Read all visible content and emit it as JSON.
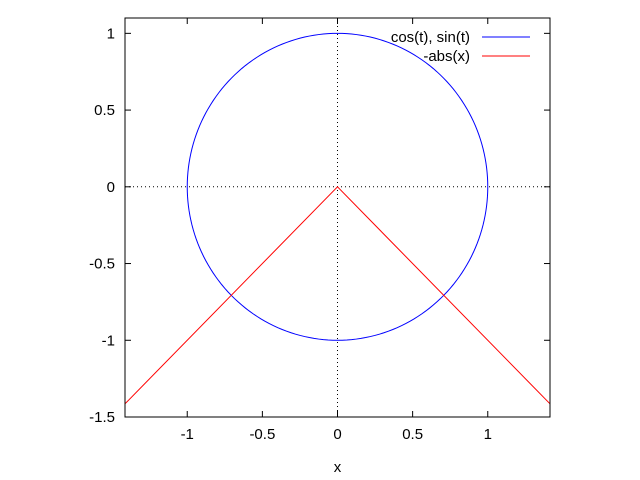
{
  "chart_data": {
    "type": "line",
    "title": "",
    "xlabel": "x",
    "ylabel": "",
    "xlim": [
      -1.4142,
      1.4142
    ],
    "ylim": [
      -1.5,
      1.1
    ],
    "x_ticks": [
      -1,
      -0.5,
      0,
      0.5,
      1
    ],
    "x_tick_labels": [
      "-1",
      "-0.5",
      "0",
      "0.5",
      "1"
    ],
    "y_ticks": [
      -1.5,
      -1,
      -0.5,
      0,
      0.5,
      1
    ],
    "y_tick_labels": [
      "-1.5",
      "-1",
      "-0.5",
      "0",
      "0.5",
      "1"
    ],
    "zero_axes": "dotted",
    "grid": false,
    "legend_position": "top-right",
    "series": [
      {
        "name": "cos(t), sin(t)",
        "color": "#0000ff",
        "kind": "parametric",
        "x": "cos(t)",
        "y": "sin(t)",
        "t_range": [
          0,
          6.2832
        ],
        "sample_points": [
          [
            1,
            0
          ],
          [
            0,
            1
          ],
          [
            -1,
            0
          ],
          [
            0,
            -1
          ],
          [
            1,
            0
          ]
        ]
      },
      {
        "name": "-abs(x)",
        "color": "#ff0000",
        "kind": "function",
        "x": [
          -1.4142,
          0,
          1.4142
        ],
        "y": [
          -1.4142,
          0,
          -1.4142
        ]
      }
    ]
  }
}
